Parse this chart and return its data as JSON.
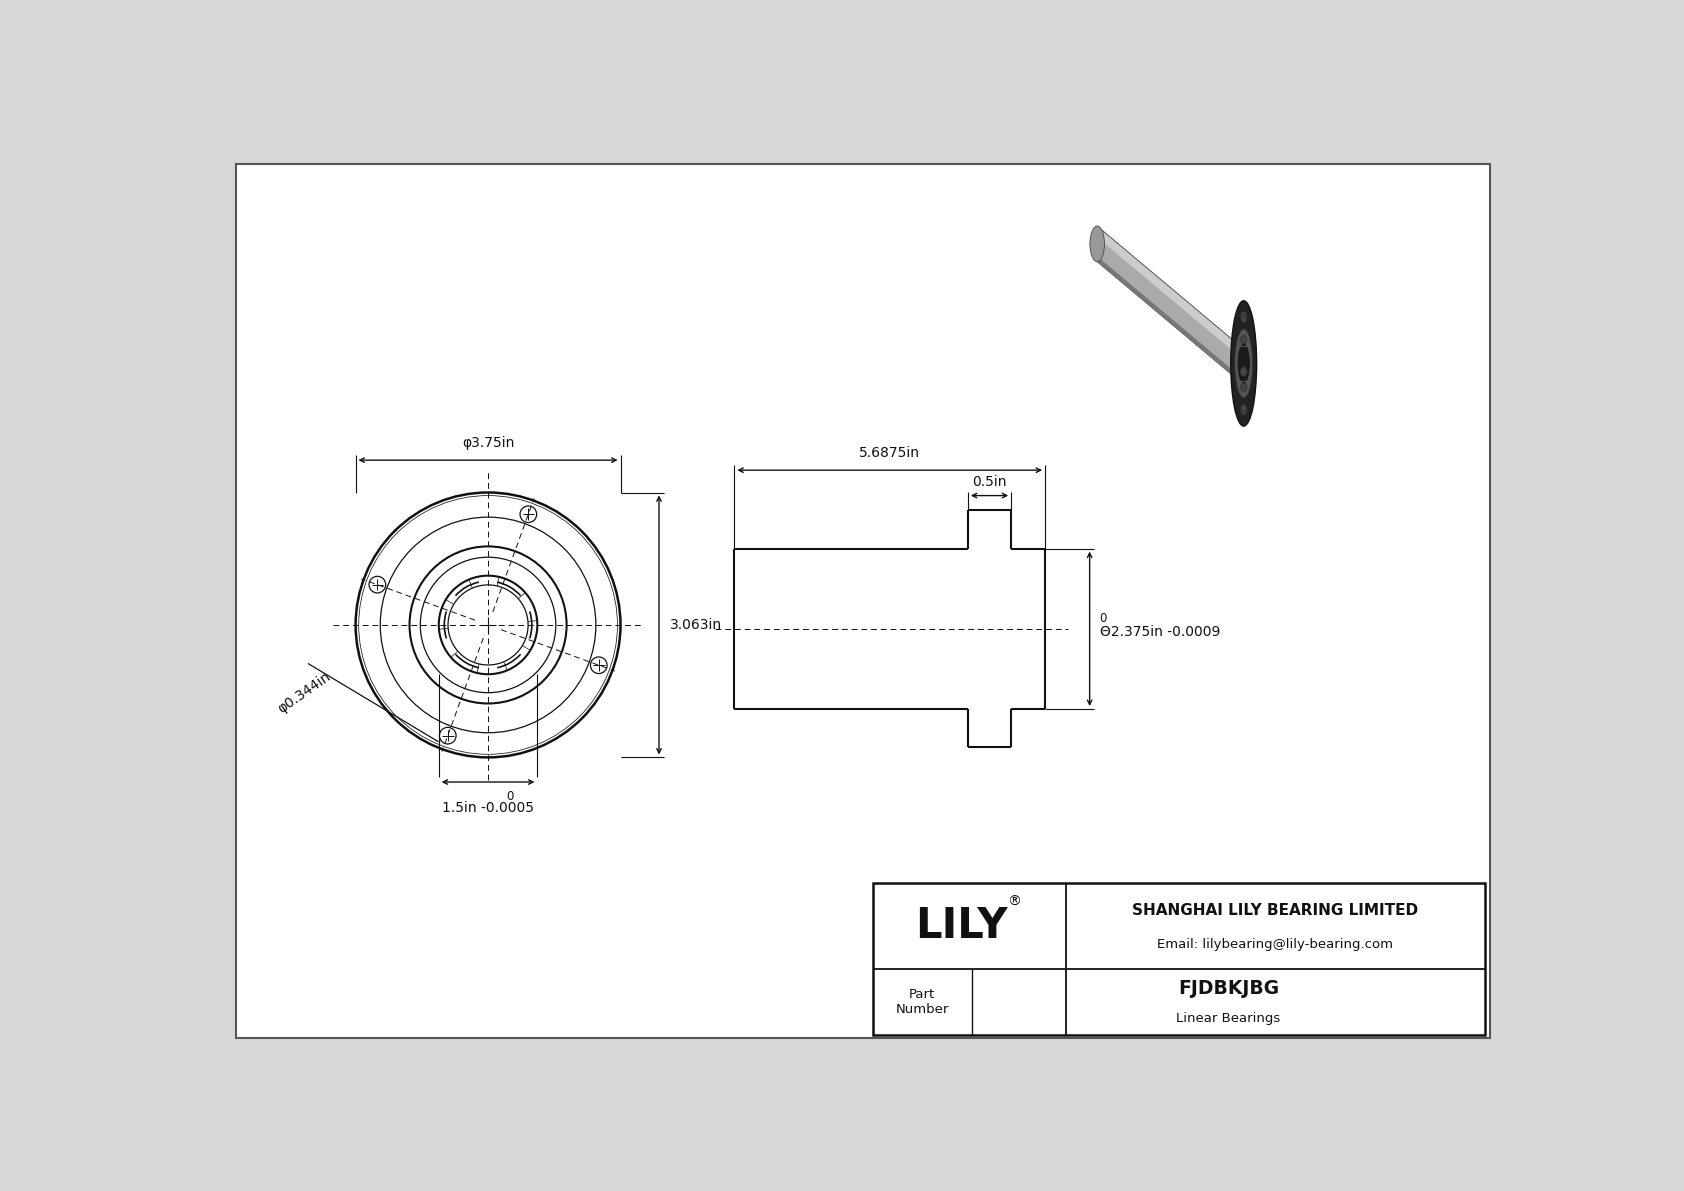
{
  "bg_color": "#d8d8d8",
  "draw_bg": "#ffffff",
  "line_color": "#111111",
  "dim_color": "#111111",
  "title_company": "SHANGHAI LILY BEARING LIMITED",
  "title_email": "Email: lilybearing@lily-bearing.com",
  "part_number": "FJDBKJBG",
  "part_type": "Linear Bearings",
  "brand": "LILY",
  "dim_od": "Θ2.375in",
  "dim_length": "5.6875in",
  "dim_flange_thick": "0.5in",
  "dim_front_od": "φ3.75in",
  "dim_front_id_label": "1.5in -0.0005",
  "dim_front_id_zero": "0",
  "dim_bolt": "φ0.344in",
  "dim_height": "3.063in",
  "dim_od_zero": "0",
  "dim_od_tol": "-0.0009"
}
